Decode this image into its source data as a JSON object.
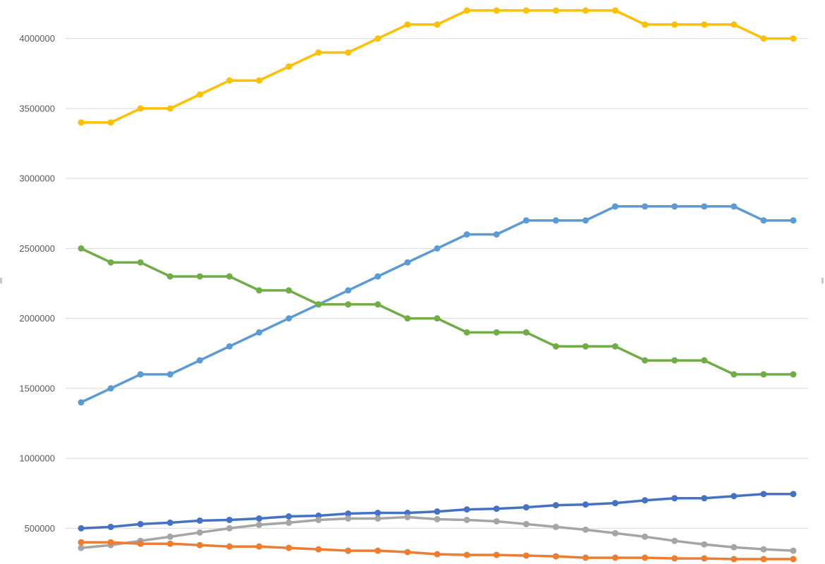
{
  "chart_data": {
    "type": "line",
    "title": "",
    "xlabel": "",
    "ylabel": "",
    "ylim": [
      250000,
      4250000
    ],
    "grid": true,
    "legend": "none",
    "yticks": [
      {
        "value": 500000,
        "label": "500000"
      },
      {
        "value": 1000000,
        "label": "1000000"
      },
      {
        "value": 1500000,
        "label": "1500000"
      },
      {
        "value": 2000000,
        "label": "2000000"
      },
      {
        "value": 2500000,
        "label": "2500000"
      },
      {
        "value": 3000000,
        "label": "3000000"
      },
      {
        "value": 3500000,
        "label": "3500000"
      },
      {
        "value": 4000000,
        "label": "4000000"
      }
    ],
    "x": [
      1,
      2,
      3,
      4,
      5,
      6,
      7,
      8,
      9,
      10,
      11,
      12,
      13,
      14,
      15,
      16,
      17,
      18,
      19,
      20,
      21,
      22,
      23,
      24,
      25
    ],
    "series": [
      {
        "color": "#FFC000",
        "values": [
          3400000,
          3400000,
          3500000,
          3500000,
          3600000,
          3700000,
          3700000,
          3800000,
          3900000,
          3900000,
          4000000,
          4100000,
          4100000,
          4200000,
          4200000,
          4200000,
          4200000,
          4200000,
          4200000,
          4100000,
          4100000,
          4100000,
          4100000,
          4000000,
          4000000
        ]
      },
      {
        "color": "#5B9BD5",
        "values": [
          1400000,
          1500000,
          1600000,
          1600000,
          1700000,
          1800000,
          1900000,
          2000000,
          2100000,
          2200000,
          2300000,
          2400000,
          2500000,
          2600000,
          2600000,
          2700000,
          2700000,
          2700000,
          2800000,
          2800000,
          2800000,
          2800000,
          2800000,
          2700000,
          2700000
        ]
      },
      {
        "color": "#70AD47",
        "values": [
          2500000,
          2400000,
          2400000,
          2300000,
          2300000,
          2300000,
          2200000,
          2200000,
          2100000,
          2100000,
          2100000,
          2000000,
          2000000,
          1900000,
          1900000,
          1900000,
          1800000,
          1800000,
          1800000,
          1700000,
          1700000,
          1700000,
          1600000,
          1600000,
          1600000
        ]
      },
      {
        "color": "#4472C4",
        "values": [
          500000,
          510000,
          530000,
          540000,
          555000,
          560000,
          570000,
          585000,
          590000,
          605000,
          610000,
          610000,
          620000,
          635000,
          640000,
          650000,
          665000,
          670000,
          680000,
          700000,
          715000,
          715000,
          730000,
          745000,
          745000
        ]
      },
      {
        "color": "#A5A5A5",
        "values": [
          360000,
          380000,
          410000,
          440000,
          470000,
          500000,
          525000,
          540000,
          560000,
          570000,
          570000,
          580000,
          565000,
          560000,
          550000,
          530000,
          510000,
          490000,
          465000,
          440000,
          410000,
          385000,
          365000,
          350000,
          340000
        ]
      },
      {
        "color": "#ED7D31",
        "values": [
          400000,
          400000,
          390000,
          390000,
          380000,
          370000,
          370000,
          360000,
          350000,
          340000,
          340000,
          330000,
          315000,
          310000,
          310000,
          305000,
          300000,
          290000,
          290000,
          290000,
          285000,
          285000,
          280000,
          280000,
          280000
        ]
      }
    ]
  }
}
